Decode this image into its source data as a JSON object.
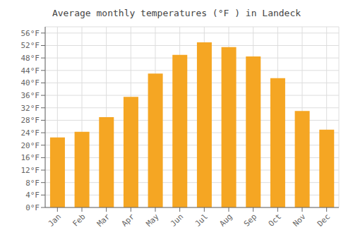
{
  "chart_data": {
    "type": "bar",
    "title": "Average monthly temperatures (°F ) in Landeck",
    "categories": [
      "Jan",
      "Feb",
      "Mar",
      "Apr",
      "May",
      "Jun",
      "Jul",
      "Aug",
      "Sep",
      "Oct",
      "Nov",
      "Dec"
    ],
    "values": [
      22.5,
      24.3,
      29.0,
      35.5,
      43.0,
      49.0,
      53.0,
      51.5,
      48.5,
      41.5,
      31.0,
      25.0
    ],
    "color": "#F5A623",
    "ylim": [
      0,
      58
    ],
    "yticks": [
      {
        "value": 0,
        "label": "0°F"
      },
      {
        "value": 4,
        "label": "4°F"
      },
      {
        "value": 8,
        "label": "8°F"
      },
      {
        "value": 12,
        "label": "12°F"
      },
      {
        "value": 16,
        "label": "16°F"
      },
      {
        "value": 20,
        "label": "20°F"
      },
      {
        "value": 24,
        "label": "24°F"
      },
      {
        "value": 28,
        "label": "28°F"
      },
      {
        "value": 32,
        "label": "32°F"
      },
      {
        "value": 36,
        "label": "36°F"
      },
      {
        "value": 40,
        "label": "40°F"
      },
      {
        "value": 44,
        "label": "44°F"
      },
      {
        "value": 48,
        "label": "48°F"
      },
      {
        "value": 52,
        "label": "52°F"
      },
      {
        "value": 56,
        "label": "56°F"
      }
    ],
    "grid": true
  }
}
